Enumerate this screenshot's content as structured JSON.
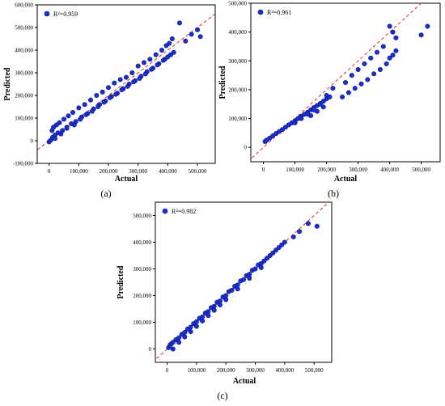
{
  "figure": {
    "background": "#ffffff"
  },
  "style": {
    "marker_fill": "#1a2fd6",
    "marker_stroke": "#0b1470",
    "ref_line_color": "#e03030",
    "axis_color": "#000000"
  },
  "chart_data": [
    {
      "type": "scatter",
      "panel_label": "(a)",
      "xlabel": "Actual",
      "ylabel": "Predicted",
      "legend": {
        "text": "R²=0.959",
        "position": "top-left"
      },
      "xlim": [
        -40000,
        560000
      ],
      "ylim": [
        -100000,
        600000
      ],
      "xticks": [
        0,
        100000,
        200000,
        300000,
        400000,
        500000
      ],
      "xtick_labels": [
        "0",
        "100,000",
        "200,000",
        "300,000",
        "400,000",
        "500,000"
      ],
      "yticks": [
        -100000,
        0,
        100000,
        200000,
        300000,
        400000,
        500000,
        600000
      ],
      "ytick_labels": [
        "-100,000",
        "0",
        "100,000",
        "200,000",
        "300,000",
        "400,000",
        "500,000",
        "600,000"
      ],
      "grid": false,
      "reference_line": "y=x",
      "x": [
        0,
        6000,
        12000,
        20000,
        30000,
        45000,
        60000,
        75000,
        90000,
        110000,
        130000,
        150000,
        170000,
        190000,
        210000,
        230000,
        250000,
        270000,
        290000,
        310000,
        330000,
        350000,
        370000,
        390000,
        400000,
        410000,
        420000,
        460000,
        480000,
        500000,
        510000,
        10000,
        15000,
        25000,
        35000,
        50000,
        65000,
        80000,
        100000,
        120000,
        140000,
        160000,
        180000,
        200000,
        220000,
        240000,
        260000,
        280000,
        300000,
        320000,
        340000,
        360000,
        380000,
        395000,
        405000,
        415000,
        440000,
        20000,
        40000,
        60000,
        85000,
        105000,
        125000,
        145000,
        165000,
        185000,
        205000,
        225000,
        245000,
        265000,
        285000,
        305000,
        325000,
        345000,
        365000,
        385000
      ],
      "y": [
        -5000,
        3000,
        15000,
        25000,
        35000,
        45000,
        60000,
        75000,
        85000,
        105000,
        120000,
        140000,
        160000,
        175000,
        195000,
        210000,
        230000,
        250000,
        265000,
        285000,
        305000,
        320000,
        340000,
        360000,
        370000,
        380000,
        390000,
        440000,
        470000,
        490000,
        460000,
        45000,
        60000,
        70000,
        80000,
        95000,
        110000,
        125000,
        145000,
        160000,
        180000,
        200000,
        215000,
        235000,
        255000,
        270000,
        280000,
        300000,
        330000,
        345000,
        360000,
        380000,
        400000,
        420000,
        430000,
        450000,
        520000,
        10000,
        30000,
        55000,
        70000,
        95000,
        115000,
        130000,
        150000,
        170000,
        190000,
        205000,
        225000,
        240000,
        260000,
        275000,
        295000,
        315000,
        335000,
        355000
      ]
    },
    {
      "type": "scatter",
      "panel_label": "(b)",
      "xlabel": "Actual",
      "ylabel": "Predicted",
      "legend": {
        "text": "R²=0.961",
        "position": "top-left"
      },
      "xlim": [
        -40000,
        560000
      ],
      "ylim": [
        -50000,
        500000
      ],
      "xticks": [
        0,
        100000,
        200000,
        300000,
        400000,
        500000
      ],
      "xtick_labels": [
        "0",
        "100,000",
        "200,000",
        "300,000",
        "400,000",
        "500,000"
      ],
      "yticks": [
        0,
        100000,
        200000,
        300000,
        400000,
        500000
      ],
      "ytick_labels": [
        "0",
        "100,000",
        "200,000",
        "300,000",
        "400,000",
        "500,000"
      ],
      "grid": false,
      "reference_line": "y=x",
      "x": [
        5000,
        10000,
        20000,
        30000,
        40000,
        50000,
        60000,
        70000,
        80000,
        90000,
        100000,
        110000,
        120000,
        130000,
        140000,
        150000,
        160000,
        170000,
        180000,
        190000,
        200000,
        210000,
        150000,
        170000,
        190000,
        250000,
        270000,
        290000,
        310000,
        330000,
        350000,
        370000,
        390000,
        400000,
        410000,
        420000,
        500000,
        520000,
        260000,
        280000,
        300000,
        320000,
        340000,
        360000,
        380000,
        100000,
        120000,
        140000,
        160000,
        180000,
        200000,
        220000,
        400000,
        410000,
        420000
      ],
      "y": [
        20000,
        25000,
        32000,
        40000,
        48000,
        55000,
        62000,
        70000,
        78000,
        85000,
        92000,
        100000,
        108000,
        115000,
        122000,
        130000,
        138000,
        145000,
        152000,
        160000,
        168000,
        175000,
        110000,
        125000,
        140000,
        175000,
        190000,
        205000,
        220000,
        235000,
        255000,
        270000,
        290000,
        310000,
        320000,
        335000,
        390000,
        420000,
        225000,
        250000,
        270000,
        290000,
        310000,
        330000,
        350000,
        85000,
        100000,
        115000,
        130000,
        150000,
        180000,
        205000,
        420000,
        400000,
        380000
      ]
    },
    {
      "type": "scatter",
      "panel_label": "(c)",
      "xlabel": "Actual",
      "ylabel": "Predicted",
      "legend": {
        "text": "R²=0.982",
        "position": "top-left"
      },
      "xlim": [
        -40000,
        560000
      ],
      "ylim": [
        -50000,
        550000
      ],
      "xticks": [
        0,
        100000,
        200000,
        300000,
        400000,
        500000
      ],
      "xtick_labels": [
        "0",
        "100,000",
        "200,000",
        "300,000",
        "400,000",
        "500,000"
      ],
      "yticks": [
        0,
        100000,
        200000,
        300000,
        400000,
        500000
      ],
      "ytick_labels": [
        "0",
        "100,000",
        "200,000",
        "300,000",
        "400,000",
        "500,000"
      ],
      "grid": false,
      "reference_line": "y=x",
      "x": [
        5000,
        10000,
        15000,
        20000,
        30000,
        40000,
        50000,
        60000,
        70000,
        80000,
        90000,
        100000,
        110000,
        120000,
        130000,
        140000,
        150000,
        160000,
        170000,
        180000,
        190000,
        200000,
        210000,
        220000,
        230000,
        240000,
        250000,
        260000,
        270000,
        280000,
        290000,
        300000,
        310000,
        320000,
        330000,
        340000,
        350000,
        360000,
        370000,
        380000,
        390000,
        400000,
        430000,
        450000,
        480000,
        510000,
        20000,
        40000,
        60000,
        80000,
        100000,
        120000,
        140000,
        160000,
        180000,
        200000,
        240000,
        280000,
        320000
      ],
      "y": [
        5000,
        15000,
        20000,
        25000,
        35000,
        42000,
        55000,
        62000,
        75000,
        82000,
        95000,
        102000,
        115000,
        120000,
        135000,
        140000,
        155000,
        160000,
        175000,
        180000,
        195000,
        200000,
        215000,
        220000,
        235000,
        240000,
        255000,
        260000,
        275000,
        280000,
        295000,
        300000,
        315000,
        320000,
        330000,
        340000,
        350000,
        360000,
        370000,
        380000,
        390000,
        400000,
        420000,
        440000,
        470000,
        460000,
        0,
        25000,
        45000,
        65000,
        85000,
        105000,
        125000,
        145000,
        165000,
        185000,
        225000,
        265000,
        305000
      ]
    }
  ]
}
